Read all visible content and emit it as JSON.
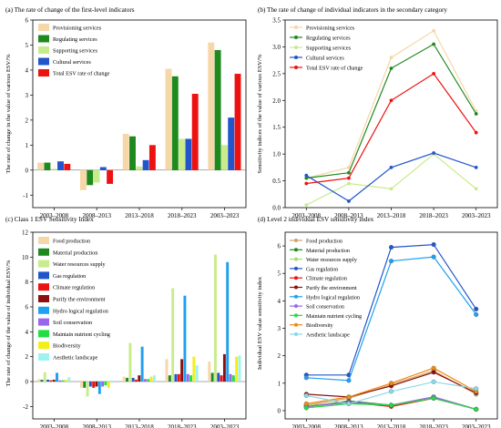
{
  "panels": [
    {
      "title": "(a) The rate of change of the first-level indicators",
      "ylabel": "The rate of change in the value of various ESV/%"
    },
    {
      "title": "(b) The rate of change of individual indicators in the secondary category",
      "ylabel": "Sensitivity indices of the value of various ESV/%"
    },
    {
      "title": "(c) Class 1 ESV Sensitivity Index",
      "ylabel": "The rate of change of the value of individual ESV/%"
    },
    {
      "title": "(d) Level 2 individual ESV sensitivity index",
      "ylabel": "Individual ESV value sensitivity index"
    }
  ],
  "chart_data": [
    {
      "type": "bar",
      "title": "(a) The rate of change of the first-level indicators",
      "ylabel": "The rate of change in the value of various ESV/%",
      "categories": [
        "2003–2008",
        "2008–2013",
        "2013–2018",
        "2018–2023",
        "2003–2023"
      ],
      "ylim": [
        -1.5,
        6
      ],
      "yticks": [
        -1,
        0,
        1,
        2,
        3,
        4,
        5,
        6
      ],
      "legend": "top-left",
      "series": [
        {
          "name": "Provisioning services",
          "color": "#f6d7a7",
          "values": [
            0.3,
            -0.8,
            1.45,
            4.05,
            5.1
          ]
        },
        {
          "name": "Regulating services",
          "color": "#1e8a1e",
          "values": [
            0.3,
            -0.6,
            1.35,
            3.75,
            4.8
          ]
        },
        {
          "name": "Supporting services",
          "color": "#c8ec8c",
          "values": [
            0.05,
            -0.5,
            0.15,
            1.25,
            1.0
          ]
        },
        {
          "name": "Cultural services",
          "color": "#2255cc",
          "values": [
            0.35,
            0.12,
            0.4,
            1.25,
            2.1
          ]
        },
        {
          "name": "Total ESV rate of change",
          "color": "#ee1111",
          "values": [
            0.25,
            -0.55,
            1.0,
            3.05,
            3.85
          ]
        }
      ]
    },
    {
      "type": "line",
      "title": "(b) The rate of change of individual indicators in the secondary category",
      "ylabel": "Sensitivity indices of the value of various ESV/%",
      "categories": [
        "2003–2008",
        "2008–2013",
        "2013–2018",
        "2018–2023",
        "2003–2023"
      ],
      "ylim": [
        0,
        3.5
      ],
      "yticks": [
        0.0,
        0.5,
        1.0,
        1.5,
        2.0,
        2.5,
        3.0,
        3.5
      ],
      "legend": "top-left",
      "series": [
        {
          "name": "Provisioning services",
          "color": "#f6d7a7",
          "values": [
            0.55,
            0.75,
            2.8,
            3.3,
            1.8
          ]
        },
        {
          "name": "Regulating services",
          "color": "#1e8a1e",
          "values": [
            0.55,
            0.65,
            2.6,
            3.05,
            1.75
          ]
        },
        {
          "name": "Supporting services",
          "color": "#c8ec8c",
          "values": [
            0.05,
            0.45,
            0.35,
            1.0,
            0.35
          ]
        },
        {
          "name": "Cultural services",
          "color": "#2255cc",
          "values": [
            0.6,
            0.12,
            0.75,
            1.02,
            0.75
          ]
        },
        {
          "name": "Total ESV rate of change",
          "color": "#ee1111",
          "values": [
            0.45,
            0.55,
            2.0,
            2.5,
            1.4
          ]
        }
      ]
    },
    {
      "type": "bar",
      "title": "(c) Class 1 ESV Sensitivity Index",
      "ylabel": "The rate of change of the value of individual ESV/%",
      "categories": [
        "2003–2008",
        "2008–2013",
        "2013–2018",
        "2018–2023",
        "2003–2023"
      ],
      "ylim": [
        -3,
        12
      ],
      "yticks": [
        -2,
        0,
        2,
        4,
        6,
        8,
        10,
        12
      ],
      "legend": "top-left",
      "series": [
        {
          "name": "Food production",
          "color": "#f6d7a7",
          "values": [
            0.2,
            -0.5,
            0.4,
            1.8,
            1.6
          ]
        },
        {
          "name": "Material production",
          "color": "#1e8a1e",
          "values": [
            0.15,
            -0.5,
            0.3,
            0.5,
            0.7
          ]
        },
        {
          "name": "Water resources supply",
          "color": "#c8ec8c",
          "values": [
            0.75,
            -1.2,
            3.1,
            7.5,
            10.2
          ]
        },
        {
          "name": "Gas regulation",
          "color": "#2255cc",
          "values": [
            0.15,
            -0.4,
            0.3,
            0.6,
            0.7
          ]
        },
        {
          "name": "Climate regulation",
          "color": "#ee1111",
          "values": [
            0.1,
            -0.5,
            0.15,
            0.6,
            0.5
          ]
        },
        {
          "name": "Purify the environment",
          "color": "#8b1010",
          "values": [
            0.15,
            -0.4,
            0.5,
            1.8,
            2.2
          ]
        },
        {
          "name": "Hydro logical regulation",
          "color": "#1ea0f0",
          "values": [
            0.7,
            -1.0,
            2.8,
            6.9,
            9.6
          ]
        },
        {
          "name": "Soil conservation",
          "color": "#9966ee",
          "values": [
            0.1,
            -0.4,
            0.2,
            0.6,
            0.6
          ]
        },
        {
          "name": "Maintain nutrient cycling",
          "color": "#22dd44",
          "values": [
            0.1,
            -0.3,
            0.2,
            0.5,
            0.5
          ]
        },
        {
          "name": "Biodiversity",
          "color": "#f2ee1c",
          "values": [
            0.15,
            -0.5,
            0.4,
            2.0,
            2.0
          ]
        },
        {
          "name": "Aesthetic landscape",
          "color": "#9ef2f2",
          "values": [
            0.35,
            -0.1,
            0.5,
            1.3,
            2.1
          ]
        }
      ]
    },
    {
      "type": "line",
      "title": "(d) Level 2 individual ESV sensitivity index",
      "ylabel": "Individual ESV value sensitivity index",
      "categories": [
        "2003–2008",
        "2008–2013",
        "2013–2018",
        "2018–2023",
        "2003–2023"
      ],
      "ylim": [
        -0.3,
        6.5
      ],
      "yticks": [
        0,
        1,
        2,
        3,
        4,
        5,
        6
      ],
      "legend": "top-left",
      "series": [
        {
          "name": "Food production",
          "color": "#d4a26a",
          "values": [
            0.2,
            0.45,
            0.95,
            1.45,
            0.6
          ]
        },
        {
          "name": "Material production",
          "color": "#1e8a1e",
          "values": [
            0.15,
            0.35,
            0.2,
            0.5,
            0.05
          ]
        },
        {
          "name": "Water resources supply",
          "color": "#a6dc6a",
          "values": [
            0.2,
            0.3,
            0.2,
            0.5,
            0.05
          ]
        },
        {
          "name": "Gas regulation",
          "color": "#2255cc",
          "values": [
            1.3,
            1.3,
            5.95,
            6.05,
            3.7
          ]
        },
        {
          "name": "Climate regulation",
          "color": "#ee1111",
          "values": [
            0.15,
            0.3,
            0.15,
            0.45,
            0.05
          ]
        },
        {
          "name": "Purify the environment",
          "color": "#8b1010",
          "values": [
            0.6,
            0.5,
            0.9,
            1.4,
            0.65
          ]
        },
        {
          "name": "Hydro logical regulation",
          "color": "#1ea0f0",
          "values": [
            1.2,
            1.1,
            5.45,
            5.6,
            3.5
          ]
        },
        {
          "name": "Soil conservation",
          "color": "#9966ee",
          "values": [
            0.15,
            0.3,
            0.2,
            0.5,
            0.05
          ]
        },
        {
          "name": "Maintain nutrient cycling",
          "color": "#22dd44",
          "values": [
            0.1,
            0.25,
            0.2,
            0.45,
            0.05
          ]
        },
        {
          "name": "Biodiversity",
          "color": "#f08a10",
          "values": [
            0.25,
            0.5,
            1.0,
            1.55,
            0.7
          ]
        },
        {
          "name": "Aesthetic landscape",
          "color": "#8ad8e8",
          "values": [
            0.55,
            0.25,
            0.7,
            1.05,
            0.8
          ]
        }
      ]
    }
  ]
}
